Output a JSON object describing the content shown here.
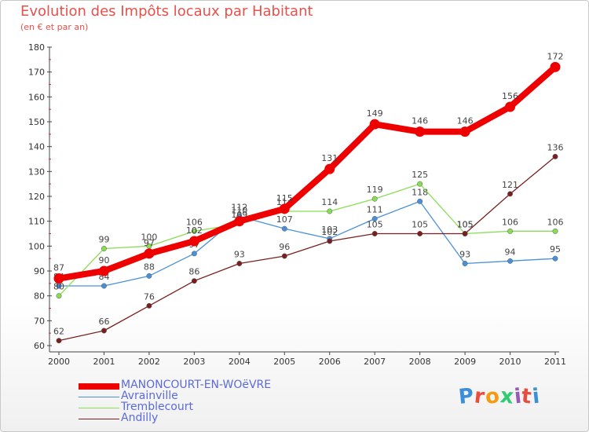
{
  "title": "Evolution des Impôts locaux par Habitant",
  "subtitle": "(en € et par an)",
  "logo_text": "Proxiti",
  "logo_colors": [
    "#3a8fd8",
    "#e84c3d",
    "#f39c12",
    "#2ecc71",
    "#9b59b6",
    "#e84c3d",
    "#3a8fd8"
  ],
  "chart_data": {
    "type": "line",
    "title": "Evolution des Impôts locaux par Habitant",
    "subtitle": "(en € et par an)",
    "xlabel": "",
    "ylabel": "",
    "x": [
      "2000",
      "2001",
      "2002",
      "2003",
      "2004",
      "2005",
      "2006",
      "2007",
      "2008",
      "2009",
      "2010",
      "2011"
    ],
    "ylim": [
      60,
      180
    ],
    "yticks": [
      60,
      70,
      80,
      90,
      100,
      110,
      120,
      130,
      140,
      150,
      160,
      170,
      180
    ],
    "grid": false,
    "legend_position": "bottom-left",
    "series": [
      {
        "name": "MANONCOURT-EN-WOëVRE",
        "color": "#ee0000",
        "emphasis": true,
        "values": [
          87,
          90,
          97,
          102,
          110,
          115,
          131,
          149,
          146,
          146,
          156,
          172
        ]
      },
      {
        "name": "Avrainville",
        "color": "#4a90d9",
        "emphasis": false,
        "values": [
          84,
          84,
          88,
          97,
          112,
          107,
          103,
          111,
          118,
          93,
          94,
          95
        ]
      },
      {
        "name": "Tremblecourt",
        "color": "#88dd55",
        "emphasis": false,
        "values": [
          80,
          99,
          100,
          106,
          109,
          114,
          114,
          119,
          125,
          105,
          106,
          106
        ]
      },
      {
        "name": "Andilly",
        "color": "#7a1f1f",
        "emphasis": false,
        "values": [
          62,
          66,
          76,
          86,
          93,
          96,
          102,
          105,
          105,
          105,
          121,
          136
        ]
      }
    ]
  }
}
